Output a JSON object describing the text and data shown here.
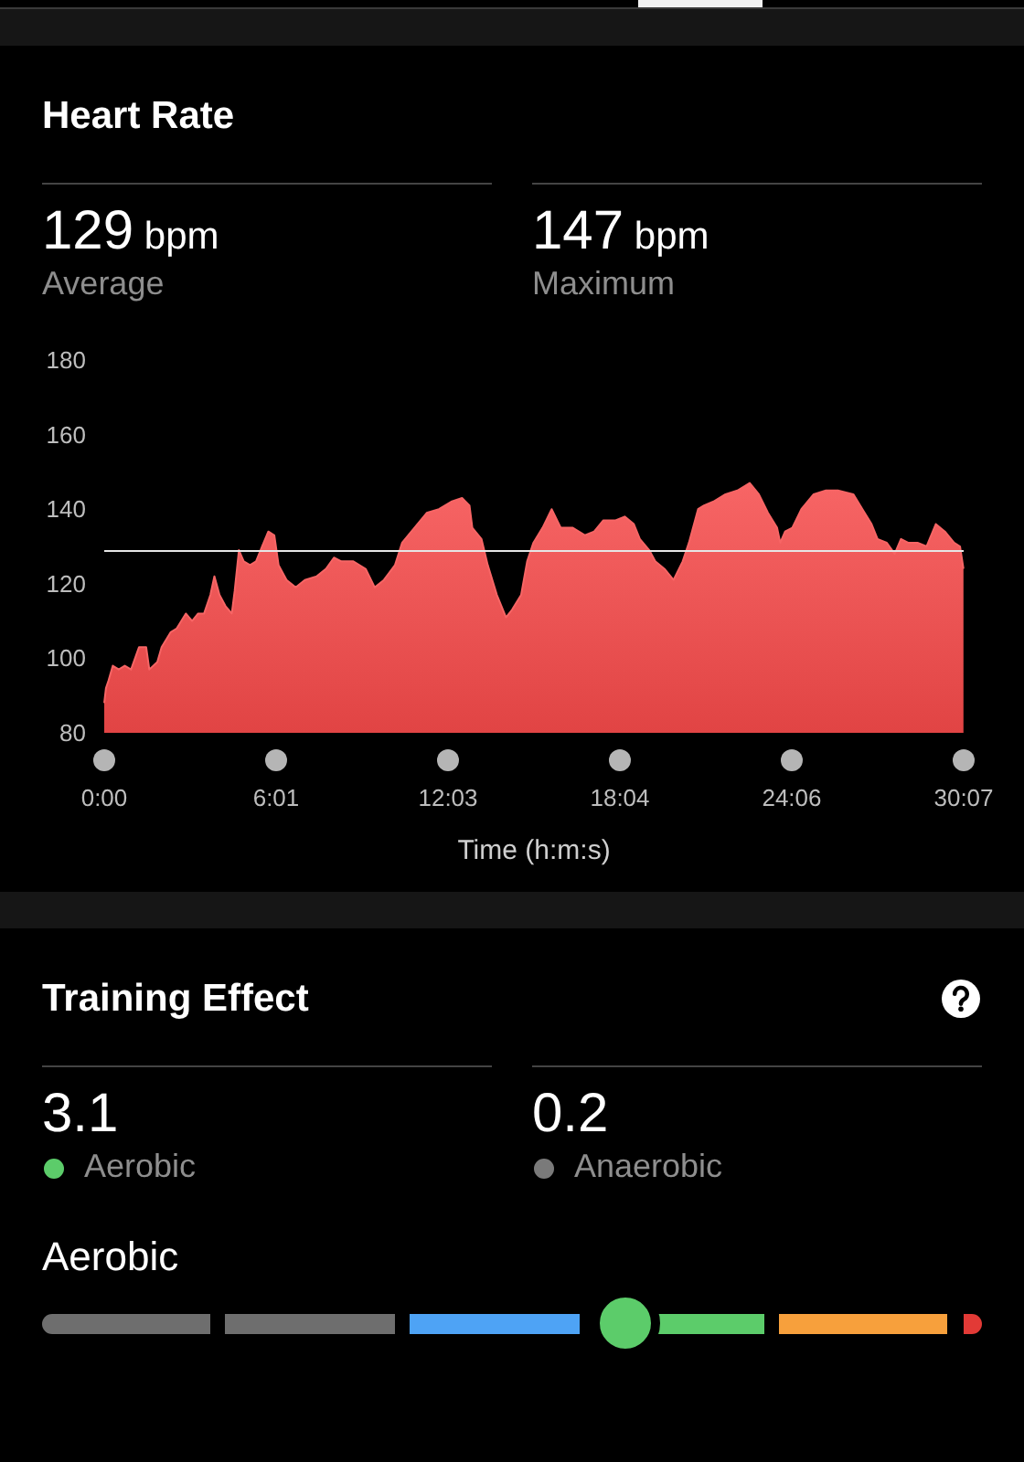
{
  "chart_data": [
    {
      "type": "area",
      "title": "Heart Rate",
      "annotations": [
        "129 bpm",
        "Average",
        "147 bpm",
        "Maximum"
      ],
      "xlabel": "Time (h:m:s)",
      "x": [
        0,
        0.06,
        0.15,
        0.3,
        0.51,
        0.72,
        0.94,
        1.22,
        1.47,
        1.58,
        1.86,
        2.01,
        2.33,
        2.54,
        2.86,
        3.08,
        3.29,
        3.5,
        3.72,
        3.86,
        4.04,
        4.25,
        4.47,
        4.57,
        4.72,
        4.89,
        5.11,
        5.32,
        5.53,
        5.75,
        5.96,
        6.11,
        6.39,
        6.71,
        7.03,
        7.45,
        7.77,
        8.05,
        8.31,
        8.73,
        9.16,
        9.48,
        9.8,
        10.19,
        10.44,
        10.87,
        11.3,
        11.73,
        12.16,
        12.54,
        12.8,
        12.9,
        13.22,
        13.44,
        13.76,
        14.08,
        14.29,
        14.61,
        14.82,
        15.04,
        15.36,
        15.68,
        16.0,
        16.42,
        16.85,
        17.17,
        17.49,
        17.92,
        18.24,
        18.56,
        18.77,
        19.1,
        19.31,
        19.63,
        19.95,
        20.27,
        20.49,
        20.81,
        21.02,
        21.34,
        21.77,
        22.19,
        22.62,
        22.94,
        23.26,
        23.58,
        23.69,
        23.86,
        24.11,
        24.43,
        24.86,
        25.29,
        25.71,
        26.25,
        26.57,
        26.89,
        27.1,
        27.42,
        27.7,
        27.92,
        28.17,
        28.5,
        28.82,
        29.14,
        29.46,
        29.78,
        29.99,
        30.11
      ],
      "values": [
        88,
        92,
        94,
        98,
        97,
        98,
        97,
        103,
        103,
        97,
        99,
        103,
        107,
        108,
        112,
        110,
        112,
        112,
        117,
        122,
        117,
        114,
        112,
        118,
        129,
        126,
        125,
        126,
        130,
        134,
        133,
        125,
        121,
        119,
        121,
        122,
        124,
        127,
        126,
        126,
        124,
        119,
        121,
        125,
        131,
        135,
        139,
        140,
        142,
        143,
        141,
        135,
        132,
        125,
        117,
        111,
        113,
        117,
        126,
        131,
        135,
        140,
        135,
        135,
        133,
        134,
        137,
        137,
        138,
        136,
        132,
        129,
        126,
        124,
        121,
        126,
        131,
        140,
        141,
        142,
        144,
        145,
        147,
        144,
        139,
        135,
        131,
        134,
        135,
        140,
        144,
        145,
        145,
        144,
        140,
        136,
        132,
        131,
        128,
        132,
        131,
        131,
        130,
        136,
        134,
        131,
        130,
        124
      ],
      "color": "#f54a4a",
      "marker": "none",
      "xlim": [
        0,
        30.117
      ],
      "xticks": [
        {
          "value": 0,
          "label": "0:00"
        },
        {
          "value": 6.023,
          "label": "6:01"
        },
        {
          "value": 12.047,
          "label": "12:03"
        },
        {
          "value": 18.07,
          "label": "18:04"
        },
        {
          "value": 24.093,
          "label": "24:06"
        },
        {
          "value": 30.117,
          "label": "30:07"
        }
      ],
      "ylim": [
        80,
        180
      ],
      "yticks": [
        80,
        100,
        120,
        140,
        160,
        180
      ],
      "ref_lines": [
        {
          "axis": "y",
          "value": 129,
          "color": "#e6e6e6"
        }
      ]
    },
    {
      "type": "other",
      "title": "Training Effect",
      "annotations": [
        "3.1",
        "Aerobic",
        "0.2",
        "Anaerobic",
        "Aerobic"
      ]
    }
  ]
}
